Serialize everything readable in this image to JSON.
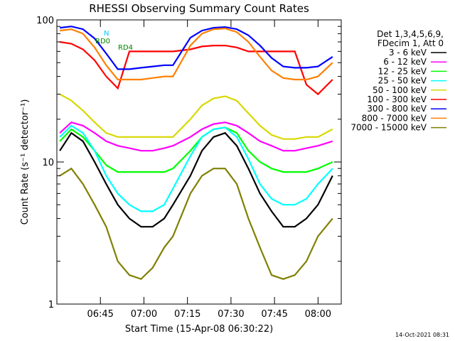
{
  "chart_data": {
    "type": "line",
    "title": "RHESSI Observing Summary Count Rates",
    "xlabel": "Start Time (15-Apr-08 06:30:22)",
    "ylabel": "Count Rate (s⁻¹ detector⁻¹)",
    "yscale": "log",
    "ylim": [
      1,
      100
    ],
    "xlim": [
      "06:30:22",
      "08:08:00"
    ],
    "grid": false,
    "legend_position": "right",
    "x_ticks": [
      "06:45",
      "07:00",
      "07:15",
      "07:30",
      "07:45",
      "08:00"
    ],
    "y_ticks": [
      "1",
      "10",
      "100"
    ],
    "legend_header": [
      "Det 1,3,4,5,6,9,",
      "FDecim 1, Att 0"
    ],
    "series": [
      {
        "name": "3 - 6 keV",
        "color": "#000000",
        "x": [
          "06:31",
          "06:35",
          "06:39",
          "06:43",
          "06:47",
          "06:51",
          "06:55",
          "06:59",
          "07:03",
          "07:07",
          "07:10",
          "07:16",
          "07:20",
          "07:24",
          "07:28",
          "07:32",
          "07:36",
          "07:40",
          "07:44",
          "07:48",
          "07:52",
          "07:56",
          "08:00",
          "08:05"
        ],
        "values": [
          12,
          16,
          14,
          10,
          7,
          5,
          4,
          3.5,
          3.5,
          4,
          5,
          8,
          12,
          15,
          16,
          13,
          9,
          6,
          4.5,
          3.5,
          3.5,
          4,
          5,
          8
        ]
      },
      {
        "name": "6 - 12 keV",
        "color": "#ff00ff",
        "x": [
          "06:31",
          "06:35",
          "06:39",
          "06:43",
          "06:47",
          "06:51",
          "06:55",
          "06:59",
          "07:03",
          "07:07",
          "07:10",
          "07:16",
          "07:20",
          "07:24",
          "07:28",
          "07:32",
          "07:36",
          "07:40",
          "07:44",
          "07:48",
          "07:52",
          "07:56",
          "08:00",
          "08:05"
        ],
        "values": [
          16,
          19,
          18,
          16,
          14,
          13,
          12.5,
          12,
          12,
          12.5,
          13,
          15,
          17,
          18.5,
          19,
          18,
          16,
          14,
          13,
          12,
          12,
          12.5,
          13,
          14
        ]
      },
      {
        "name": "12 - 25 keV",
        "color": "#00ff00",
        "x": [
          "06:31",
          "06:35",
          "06:39",
          "06:43",
          "06:47",
          "06:51",
          "06:55",
          "06:59",
          "07:03",
          "07:07",
          "07:10",
          "07:16",
          "07:20",
          "07:24",
          "07:28",
          "07:32",
          "07:36",
          "07:40",
          "07:44",
          "07:48",
          "07:52",
          "07:56",
          "08:00",
          "08:05"
        ],
        "values": [
          14,
          17,
          15,
          12,
          9.5,
          8.5,
          8.5,
          8.5,
          8.5,
          8.5,
          9,
          12,
          15,
          17,
          17.5,
          16,
          12,
          10,
          9,
          8.5,
          8.5,
          8.5,
          9,
          10
        ]
      },
      {
        "name": "25 - 50 keV",
        "color": "#00ffff",
        "x": [
          "06:31",
          "06:35",
          "06:39",
          "06:43",
          "06:47",
          "06:51",
          "06:55",
          "06:59",
          "07:03",
          "07:07",
          "07:10",
          "07:16",
          "07:20",
          "07:24",
          "07:28",
          "07:32",
          "07:36",
          "07:40",
          "07:44",
          "07:48",
          "07:52",
          "07:56",
          "08:00",
          "08:05"
        ],
        "values": [
          15,
          18,
          16,
          12,
          8,
          6,
          5,
          4.5,
          4.5,
          5,
          6.5,
          11,
          15,
          17,
          17.5,
          15,
          10.5,
          7,
          5.5,
          5,
          5,
          5.5,
          7,
          9
        ]
      },
      {
        "name": "50 - 100 keV",
        "color": "#d8d800",
        "x": [
          "06:31",
          "06:35",
          "06:39",
          "06:43",
          "06:47",
          "06:51",
          "06:55",
          "06:59",
          "07:03",
          "07:07",
          "07:10",
          "07:16",
          "07:20",
          "07:24",
          "07:28",
          "07:32",
          "07:36",
          "07:40",
          "07:44",
          "07:48",
          "07:52",
          "07:56",
          "08:00",
          "08:05"
        ],
        "values": [
          30,
          27,
          23,
          19,
          16,
          15,
          15,
          15,
          15,
          15,
          15,
          20,
          25,
          28,
          29,
          27,
          22,
          18,
          15.5,
          14.5,
          14.5,
          15,
          15,
          17
        ]
      },
      {
        "name": "100 - 300 keV",
        "color": "#ff0000",
        "x": [
          "06:31",
          "06:35",
          "06:39",
          "06:43",
          "06:47",
          "06:51",
          "06:55",
          "06:59",
          "07:03",
          "07:07",
          "07:10",
          "07:16",
          "07:20",
          "07:24",
          "07:28",
          "07:32",
          "07:36",
          "07:40",
          "07:44",
          "07:48",
          "07:52",
          "07:56",
          "08:00",
          "08:05"
        ],
        "values": [
          70,
          68,
          62,
          52,
          40,
          33,
          60,
          60,
          60,
          60,
          60,
          62,
          65,
          66,
          66,
          64,
          60,
          60,
          60,
          60,
          60,
          35,
          30,
          38
        ]
      },
      {
        "name": "300 - 800 keV",
        "color": "#0000ff",
        "x": [
          "06:31",
          "06:35",
          "06:39",
          "06:43",
          "06:47",
          "06:51",
          "06:55",
          "06:59",
          "07:03",
          "07:07",
          "07:10",
          "07:16",
          "07:20",
          "07:24",
          "07:28",
          "07:32",
          "07:36",
          "07:40",
          "07:44",
          "07:48",
          "07:52",
          "07:56",
          "08:00",
          "08:05"
        ],
        "values": [
          88,
          90,
          86,
          74,
          58,
          45,
          45,
          46,
          47,
          48,
          48,
          75,
          84,
          88,
          89,
          86,
          78,
          66,
          54,
          47,
          46,
          46,
          47,
          55
        ]
      },
      {
        "name": "800 - 7000 keV",
        "color": "#ff8000",
        "x": [
          "06:31",
          "06:35",
          "06:39",
          "06:43",
          "06:47",
          "06:51",
          "06:55",
          "06:59",
          "07:03",
          "07:07",
          "07:10",
          "07:16",
          "07:20",
          "07:24",
          "07:28",
          "07:32",
          "07:36",
          "07:40",
          "07:44",
          "07:48",
          "07:52",
          "07:56",
          "08:00",
          "08:05"
        ],
        "values": [
          84,
          86,
          80,
          64,
          48,
          38,
          38,
          38,
          39,
          40,
          40,
          66,
          80,
          86,
          87,
          82,
          70,
          55,
          44,
          39,
          38,
          38,
          40,
          50
        ]
      },
      {
        "name": "7000 - 15000 keV",
        "color": "#808000",
        "x": [
          "06:31",
          "06:35",
          "06:39",
          "06:43",
          "06:47",
          "06:51",
          "06:55",
          "06:59",
          "07:03",
          "07:07",
          "07:10",
          "07:16",
          "07:20",
          "07:24",
          "07:28",
          "07:32",
          "07:36",
          "07:40",
          "07:44",
          "07:48",
          "07:52",
          "07:56",
          "08:00",
          "08:05"
        ],
        "values": [
          8,
          9,
          7,
          5,
          3.5,
          2,
          1.6,
          1.5,
          1.8,
          2.5,
          3,
          6,
          8,
          9,
          9,
          7,
          4,
          2.5,
          1.6,
          1.5,
          1.6,
          2,
          3,
          4
        ]
      }
    ],
    "annotations": [
      {
        "label": "N",
        "color": "#00c8ff"
      },
      {
        "label": "RD0",
        "color": "#008000"
      },
      {
        "label": "RD4",
        "color": "#008000"
      }
    ]
  },
  "footer": {
    "timestamp": "14-Oct-2021 08:31"
  }
}
